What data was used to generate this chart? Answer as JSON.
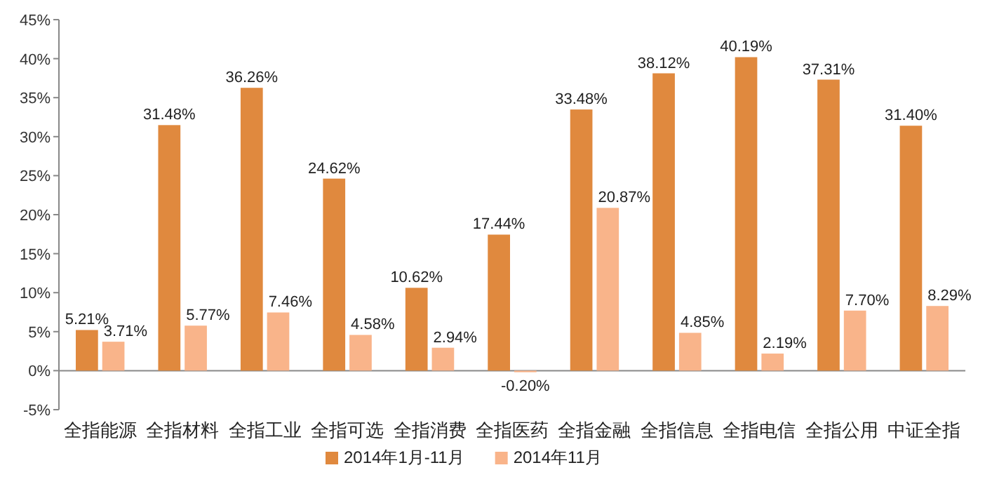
{
  "chart_data": {
    "type": "bar",
    "categories": [
      "全指能源",
      "全指材料",
      "全指工业",
      "全指可选",
      "全指消费",
      "全指医药",
      "全指金融",
      "全指信息",
      "全指电信",
      "全指公用",
      "中证全指"
    ],
    "series": [
      {
        "name": "2014年1月-11月",
        "color": "#e0893e",
        "values": [
          5.21,
          31.48,
          36.26,
          24.62,
          10.62,
          17.44,
          33.48,
          38.12,
          40.19,
          37.31,
          31.4
        ],
        "value_labels": [
          "5.21%",
          "31.48%",
          "36.26%",
          "24.62%",
          "10.62%",
          "17.44%",
          "33.48%",
          "38.12%",
          "40.19%",
          "37.31%",
          "31.40%"
        ]
      },
      {
        "name": "2014年11月",
        "color": "#f9b48a",
        "values": [
          3.71,
          5.77,
          7.46,
          4.58,
          2.94,
          -0.2,
          20.87,
          4.85,
          2.19,
          7.7,
          8.29
        ],
        "value_labels": [
          "3.71%",
          "5.77%",
          "7.46%",
          "4.58%",
          "2.94%",
          "-0.20%",
          "20.87%",
          "4.85%",
          "2.19%",
          "7.70%",
          "8.29%"
        ]
      }
    ],
    "ylim": [
      -5,
      45
    ],
    "yticks": [
      {
        "value": -5,
        "label": "-5%"
      },
      {
        "value": 0,
        "label": "0%"
      },
      {
        "value": 5,
        "label": "5%"
      },
      {
        "value": 10,
        "label": "10%"
      },
      {
        "value": 15,
        "label": "15%"
      },
      {
        "value": 20,
        "label": "20%"
      },
      {
        "value": 25,
        "label": "25%"
      },
      {
        "value": 30,
        "label": "30%"
      },
      {
        "value": 35,
        "label": "35%"
      },
      {
        "value": 40,
        "label": "40%"
      },
      {
        "value": 45,
        "label": "45%"
      }
    ],
    "legend": "bottom"
  }
}
